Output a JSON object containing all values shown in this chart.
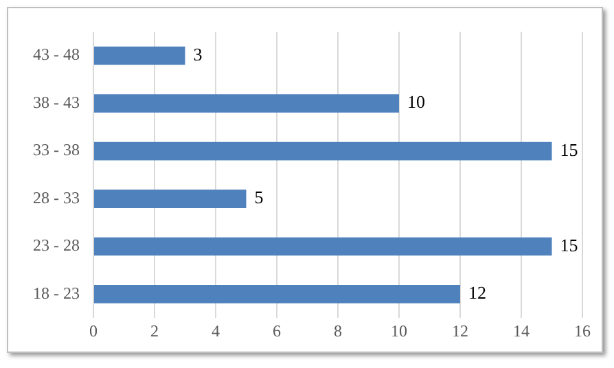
{
  "chart_data": {
    "type": "bar",
    "orientation": "horizontal",
    "categories": [
      "43 - 48",
      "38 - 43",
      "33 - 38",
      "28 - 33",
      "23 - 28",
      "18 - 23"
    ],
    "values": [
      3,
      10,
      15,
      5,
      15,
      12
    ],
    "color": "#4f81bd",
    "xlim": [
      0,
      16
    ],
    "xticks": [
      0,
      2,
      4,
      6,
      8,
      10,
      12,
      14,
      16
    ],
    "grid": "x",
    "data_labels": true,
    "legend": false
  }
}
